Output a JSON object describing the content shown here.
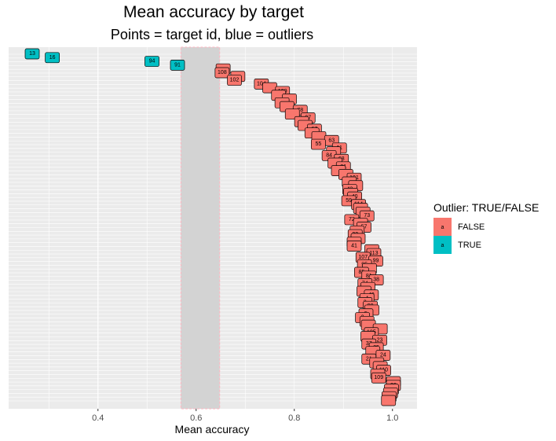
{
  "chart_data": {
    "type": "scatter",
    "title": "Mean accuracy by target",
    "subtitle": "Points = target id, blue = outliers",
    "xlabel": "Mean accuracy",
    "ylabel": "",
    "xlim": [
      0.218,
      1.05
    ],
    "x_ticks": [
      0.4,
      0.6,
      0.8,
      1.0
    ],
    "x_tick_labels": [
      "0.4",
      "0.6",
      "0.8",
      "1.0"
    ],
    "grid": true,
    "shaded_band": {
      "from": 0.569,
      "to": 0.648,
      "color": "#d3d3d3",
      "border": "#ffb6c1"
    },
    "legend": {
      "title": "Outlier: TRUE/FALSE",
      "placement": "right",
      "items": [
        {
          "label": "FALSE",
          "color": "#F8766D"
        },
        {
          "label": "TRUE",
          "color": "#00BFC4"
        }
      ]
    },
    "series": [
      {
        "name": "TRUE",
        "color": "#00BFC4",
        "points": [
          {
            "id": "13",
            "x": 0.266
          },
          {
            "id": "16",
            "x": 0.307
          },
          {
            "id": "94",
            "x": 0.51
          },
          {
            "id": "91",
            "x": 0.562
          }
        ]
      },
      {
        "name": "FALSE",
        "color": "#F8766D",
        "points": [
          {
            "id": "",
            "x": 0.655
          },
          {
            "id": "108",
            "x": 0.653
          },
          {
            "id": "",
            "x": 0.685
          },
          {
            "id": "102",
            "x": 0.678
          },
          {
            "id": "104",
            "x": 0.733
          },
          {
            "id": "",
            "x": 0.75
          },
          {
            "id": "109",
            "x": 0.776
          },
          {
            "id": "",
            "x": 0.768
          },
          {
            "id": "",
            "x": 0.79
          },
          {
            "id": "",
            "x": 0.775
          },
          {
            "id": "",
            "x": 0.785
          },
          {
            "id": "78",
            "x": 0.812
          },
          {
            "id": "",
            "x": 0.796
          },
          {
            "id": "97",
            "x": 0.828
          },
          {
            "id": "",
            "x": 0.815
          },
          {
            "id": "",
            "x": 0.822
          },
          {
            "id": "67",
            "x": 0.841
          },
          {
            "id": "",
            "x": 0.836
          },
          {
            "id": "",
            "x": 0.85
          },
          {
            "id": "63",
            "x": 0.876
          },
          {
            "id": "55",
            "x": 0.849
          },
          {
            "id": "11",
            "x": 0.892
          },
          {
            "id": "",
            "x": 0.88
          },
          {
            "id": "84",
            "x": 0.871
          },
          {
            "id": "68",
            "x": 0.896
          },
          {
            "id": "",
            "x": 0.883
          },
          {
            "id": "81",
            "x": 0.9
          },
          {
            "id": "",
            "x": 0.89
          },
          {
            "id": "",
            "x": 0.905
          },
          {
            "id": "101",
            "x": 0.922
          },
          {
            "id": "",
            "x": 0.912
          },
          {
            "id": "",
            "x": 0.925
          },
          {
            "id": "43",
            "x": 0.913
          },
          {
            "id": "",
            "x": 0.915
          },
          {
            "id": "40",
            "x": 0.923
          },
          {
            "id": "59",
            "x": 0.911
          },
          {
            "id": "114",
            "x": 0.931
          },
          {
            "id": "",
            "x": 0.935
          },
          {
            "id": "",
            "x": 0.94
          },
          {
            "id": "73",
            "x": 0.948
          },
          {
            "id": "72",
            "x": 0.917
          },
          {
            "id": "",
            "x": 0.935
          },
          {
            "id": "57",
            "x": 0.942
          },
          {
            "id": "",
            "x": 0.928
          },
          {
            "id": "22",
            "x": 0.924
          },
          {
            "id": "",
            "x": 0.93
          },
          {
            "id": "",
            "x": 0.922
          },
          {
            "id": "41",
            "x": 0.922
          },
          {
            "id": "",
            "x": 0.958
          },
          {
            "id": "113",
            "x": 0.962
          },
          {
            "id": "107",
            "x": 0.94
          },
          {
            "id": "99",
            "x": 0.966
          },
          {
            "id": "95",
            "x": 0.943
          },
          {
            "id": "",
            "x": 0.953
          },
          {
            "id": "85",
            "x": 0.937
          },
          {
            "id": "81",
            "x": 0.952
          },
          {
            "id": "38",
            "x": 0.967
          },
          {
            "id": "74",
            "x": 0.944
          },
          {
            "id": "",
            "x": 0.95
          },
          {
            "id": "",
            "x": 0.942
          },
          {
            "id": "49",
            "x": 0.957
          },
          {
            "id": "4",
            "x": 0.948
          },
          {
            "id": "3",
            "x": 0.944
          },
          {
            "id": "90",
            "x": 0.955
          },
          {
            "id": "",
            "x": 0.958
          },
          {
            "id": "5",
            "x": 0.946
          },
          {
            "id": "2",
            "x": 0.939
          },
          {
            "id": "",
            "x": 0.948
          },
          {
            "id": "",
            "x": 0.951
          },
          {
            "id": "",
            "x": 0.975
          },
          {
            "id": "105",
            "x": 0.957
          },
          {
            "id": "",
            "x": 0.95
          },
          {
            "id": "23",
            "x": 0.974
          },
          {
            "id": "37",
            "x": 0.952
          },
          {
            "id": "35",
            "x": 0.967
          },
          {
            "id": "",
            "x": 0.96
          },
          {
            "id": "24",
            "x": 0.981
          },
          {
            "id": "21",
            "x": 0.952
          },
          {
            "id": "",
            "x": 0.968
          },
          {
            "id": "",
            "x": 0.975
          },
          {
            "id": "110",
            "x": 0.982
          },
          {
            "id": "",
            "x": 0.97
          },
          {
            "id": "109",
            "x": 0.972
          },
          {
            "id": "",
            "x": 1.002
          },
          {
            "id": "86",
            "x": 1.002
          },
          {
            "id": "",
            "x": 0.998
          },
          {
            "id": "",
            "x": 0.996
          },
          {
            "id": "",
            "x": 0.993
          },
          {
            "id": "",
            "x": 0.992
          }
        ]
      }
    ]
  }
}
